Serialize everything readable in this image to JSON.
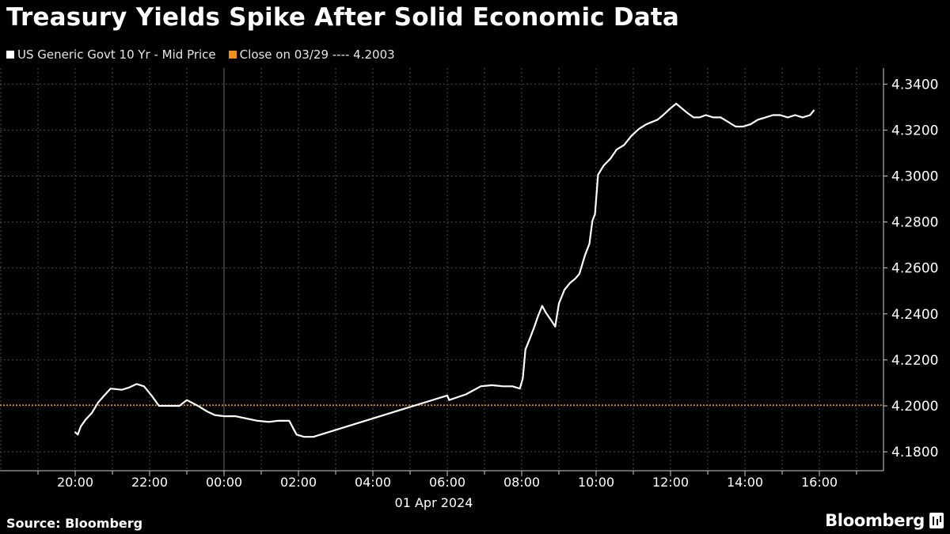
{
  "title": "Treasury Yields Spike After Solid Economic Data",
  "legend": {
    "series_label": "US Generic Govt 10 Yr - Mid Price",
    "close_label": "Close on 03/29 ---- 4.2003"
  },
  "source": "Source: Bloomberg",
  "logo": "Bloomberg",
  "colors": {
    "background": "#000000",
    "series": "#ffffff",
    "close_line": "#f0901a",
    "grid": "#555555"
  },
  "chart_data": {
    "type": "line",
    "xlabel": "01 Apr 2024",
    "ylabel": "",
    "x_unit": "hours relative to 00:00 on 01 Apr 2024",
    "xlim": [
      -5.3,
      17.8
    ],
    "ylim": [
      4.175,
      4.347
    ],
    "x_tick_labels": [
      "20:00",
      "22:00",
      "00:00",
      "02:00",
      "04:00",
      "06:00",
      "08:00",
      "10:00",
      "12:00",
      "14:00",
      "16:00"
    ],
    "x_ticks": [
      -4,
      -2,
      0,
      2,
      4,
      6,
      8,
      10,
      12,
      14,
      16
    ],
    "y_tick_labels": [
      "4.1800",
      "4.2000",
      "4.2200",
      "4.2400",
      "4.2600",
      "4.2800",
      "4.3000",
      "4.3200",
      "4.3400"
    ],
    "y_ticks": [
      4.18,
      4.2,
      4.22,
      4.24,
      4.26,
      4.28,
      4.3,
      4.32,
      4.34
    ],
    "reference_line": {
      "label": "Close on 03/29",
      "value": 4.2003
    },
    "series": [
      {
        "name": "US Generic Govt 10 Yr - Mid Price",
        "x": [
          -4.0,
          -3.93,
          -3.85,
          -3.72,
          -3.55,
          -3.38,
          -3.22,
          -3.05,
          -2.75,
          -2.55,
          -2.35,
          -2.15,
          -1.95,
          -1.75,
          -1.55,
          -1.38,
          -1.2,
          -1.0,
          -0.7,
          -0.45,
          -0.25,
          0.0,
          0.3,
          0.6,
          0.9,
          1.2,
          1.45,
          1.75,
          1.95,
          2.15,
          2.4,
          6.0,
          6.05,
          6.5,
          6.9,
          7.2,
          7.5,
          7.75,
          7.95,
          8.03,
          8.1,
          8.2,
          8.32,
          8.45,
          8.55,
          8.65,
          8.78,
          8.9,
          9.0,
          9.15,
          9.3,
          9.45,
          9.55,
          9.7,
          9.82,
          9.9,
          9.97,
          10.05,
          10.2,
          10.38,
          10.55,
          10.75,
          10.95,
          11.15,
          11.35,
          11.5,
          11.65,
          11.8,
          12.0,
          12.15,
          12.3,
          12.45,
          12.62,
          12.78,
          12.95,
          13.15,
          13.35,
          13.55,
          13.75,
          13.95,
          14.15,
          14.35,
          14.55,
          14.75,
          14.95,
          15.15,
          15.35,
          15.55,
          15.75,
          15.85
        ],
        "y": [
          4.1885,
          4.1875,
          4.191,
          4.194,
          4.197,
          4.2015,
          4.2045,
          4.2075,
          4.207,
          4.208,
          4.2095,
          4.2085,
          4.2045,
          4.2,
          4.2,
          4.2,
          4.2,
          4.2025,
          4.2,
          4.1975,
          4.196,
          4.1955,
          4.1955,
          4.1945,
          4.1935,
          4.193,
          4.1935,
          4.1935,
          4.1875,
          4.1865,
          4.1865,
          4.2045,
          4.2025,
          4.205,
          4.2085,
          4.209,
          4.2085,
          4.2085,
          4.2075,
          4.212,
          4.2245,
          4.2285,
          4.2335,
          4.2395,
          4.2435,
          4.2405,
          4.2375,
          4.2345,
          4.2445,
          4.2505,
          4.2535,
          4.2555,
          4.2575,
          4.2655,
          4.2705,
          4.2805,
          4.2835,
          4.3005,
          4.3045,
          4.3075,
          4.3115,
          4.3135,
          4.3175,
          4.3205,
          4.3225,
          4.3235,
          4.3245,
          4.3265,
          4.3295,
          4.3315,
          4.3295,
          4.3275,
          4.3255,
          4.3255,
          4.3265,
          4.3255,
          4.3255,
          4.3235,
          4.3215,
          4.3215,
          4.3225,
          4.3245,
          4.3255,
          4.3265,
          4.3265,
          4.3255,
          4.3265,
          4.3255,
          4.3265,
          4.3285
        ]
      }
    ]
  }
}
